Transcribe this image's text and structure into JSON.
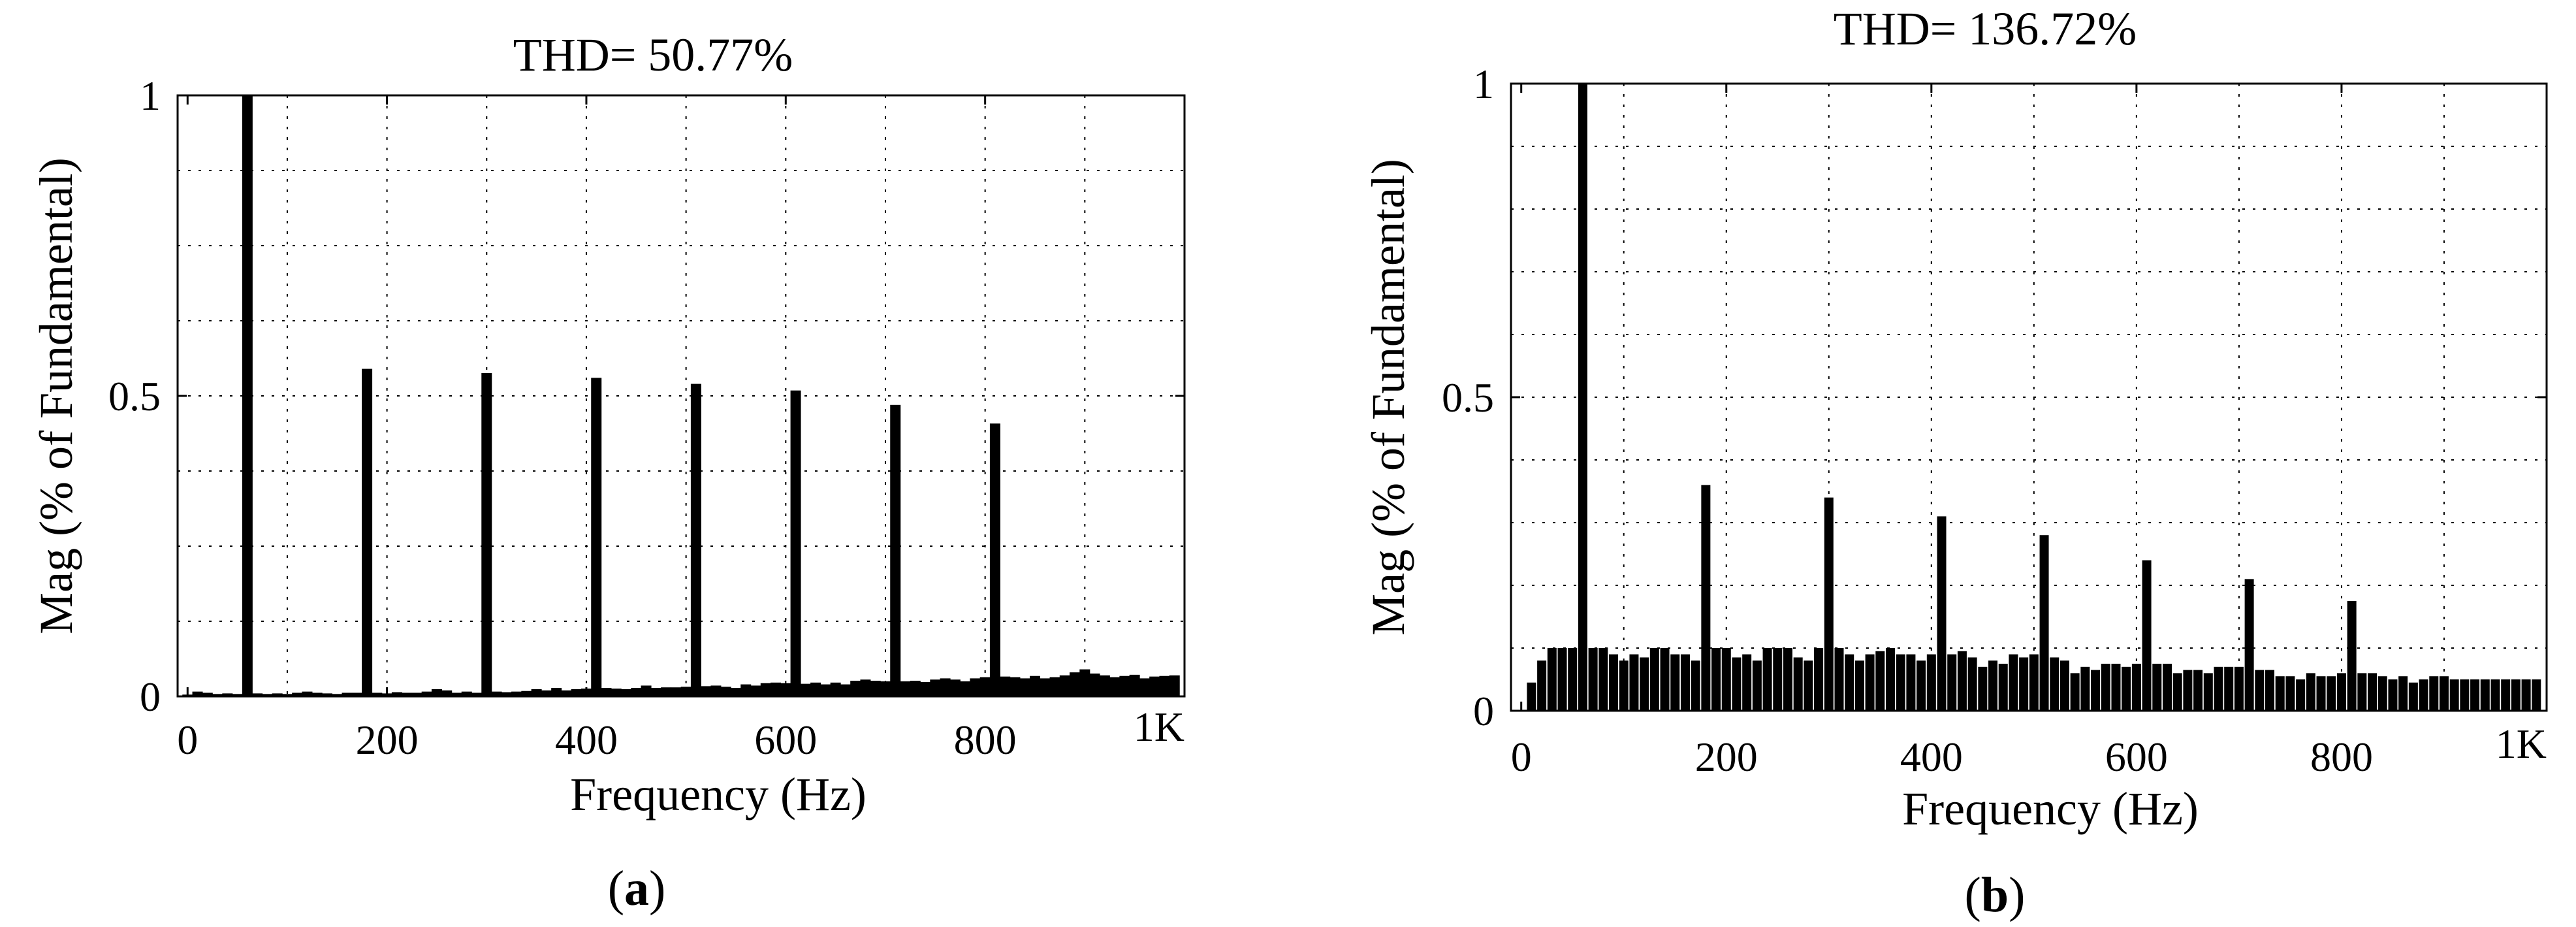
{
  "chart_data": [
    {
      "id": "a",
      "type": "bar",
      "title": "THD= 50.77%",
      "xlabel": "Frequency (Hz)",
      "ylabel": "Mag (% of Fundamental)",
      "caption": {
        "open": "(",
        "letter": "a",
        "close": ")"
      },
      "xlim": [
        -10,
        1000
      ],
      "ylim": [
        0,
        1
      ],
      "grid": true,
      "x_ticks": [
        {
          "value": 0,
          "label": "0"
        },
        {
          "value": 200,
          "label": "200"
        },
        {
          "value": 400,
          "label": "400"
        },
        {
          "value": 600,
          "label": "600"
        },
        {
          "value": 800,
          "label": "800"
        },
        {
          "value": 1000,
          "label": "1K"
        }
      ],
      "y_ticks": [
        {
          "value": 0,
          "label": "0"
        },
        {
          "value": 0.5,
          "label": "0.5"
        },
        {
          "value": 1,
          "label": "1"
        }
      ],
      "x_grid": [
        100,
        200,
        300,
        400,
        500,
        600,
        700,
        800,
        900
      ],
      "y_grid": [
        0.125,
        0.25,
        0.375,
        0.5,
        0.625,
        0.75,
        0.875
      ],
      "x": [
        0,
        10,
        20,
        30,
        40,
        50,
        60,
        70,
        80,
        90,
        100,
        110,
        120,
        130,
        140,
        150,
        160,
        170,
        180,
        190,
        200,
        210,
        220,
        230,
        240,
        250,
        260,
        270,
        280,
        290,
        300,
        310,
        320,
        330,
        340,
        350,
        360,
        370,
        380,
        390,
        400,
        410,
        420,
        430,
        440,
        450,
        460,
        470,
        480,
        490,
        500,
        510,
        520,
        530,
        540,
        550,
        560,
        570,
        580,
        590,
        600,
        610,
        620,
        630,
        640,
        650,
        660,
        670,
        680,
        690,
        700,
        710,
        720,
        730,
        740,
        750,
        760,
        770,
        780,
        790,
        800,
        810,
        820,
        830,
        840,
        850,
        860,
        870,
        880,
        890,
        900,
        910,
        920,
        930,
        940,
        950,
        960,
        970,
        980,
        990
      ],
      "values": [
        0.003,
        0.008,
        0.006,
        0.004,
        0.005,
        0.004,
        1.0,
        0.005,
        0.004,
        0.005,
        0.004,
        0.006,
        0.008,
        0.006,
        0.005,
        0.004,
        0.006,
        0.006,
        0.545,
        0.006,
        0.005,
        0.007,
        0.006,
        0.006,
        0.008,
        0.012,
        0.01,
        0.006,
        0.008,
        0.006,
        0.538,
        0.008,
        0.007,
        0.008,
        0.009,
        0.012,
        0.01,
        0.014,
        0.01,
        0.012,
        0.013,
        0.53,
        0.014,
        0.013,
        0.012,
        0.014,
        0.018,
        0.014,
        0.015,
        0.015,
        0.016,
        0.52,
        0.017,
        0.018,
        0.016,
        0.014,
        0.02,
        0.018,
        0.022,
        0.023,
        0.022,
        0.509,
        0.021,
        0.023,
        0.02,
        0.023,
        0.02,
        0.026,
        0.028,
        0.026,
        0.025,
        0.485,
        0.025,
        0.026,
        0.024,
        0.028,
        0.03,
        0.028,
        0.025,
        0.03,
        0.032,
        0.454,
        0.033,
        0.032,
        0.03,
        0.034,
        0.03,
        0.032,
        0.035,
        0.04,
        0.045,
        0.038,
        0.035,
        0.032,
        0.034,
        0.036,
        0.03,
        0.033,
        0.034,
        0.035
      ]
    },
    {
      "id": "b",
      "type": "bar",
      "title": "THD= 136.72%",
      "xlabel": "Frequency (Hz)",
      "ylabel": "Mag (% of Fundamental)",
      "caption": {
        "open": "(",
        "letter": "b",
        "close": ")"
      },
      "xlim": [
        -10,
        1000
      ],
      "ylim": [
        0,
        1
      ],
      "grid": true,
      "x_ticks": [
        {
          "value": 0,
          "label": "0"
        },
        {
          "value": 200,
          "label": "200"
        },
        {
          "value": 400,
          "label": "400"
        },
        {
          "value": 600,
          "label": "600"
        },
        {
          "value": 800,
          "label": "800"
        },
        {
          "value": 1000,
          "label": "1K"
        }
      ],
      "y_ticks": [
        {
          "value": 0,
          "label": "0"
        },
        {
          "value": 0.5,
          "label": "0.5"
        },
        {
          "value": 1,
          "label": "1"
        }
      ],
      "x_grid": [
        100,
        200,
        300,
        400,
        500,
        600,
        700,
        800,
        900
      ],
      "y_grid": [
        0.1,
        0.2,
        0.3,
        0.4,
        0.5,
        0.6,
        0.7,
        0.8,
        0.9
      ],
      "x": [
        0,
        10,
        20,
        30,
        40,
        50,
        60,
        70,
        80,
        90,
        100,
        110,
        120,
        130,
        140,
        150,
        160,
        170,
        180,
        190,
        200,
        210,
        220,
        230,
        240,
        250,
        260,
        270,
        280,
        290,
        300,
        310,
        320,
        330,
        340,
        350,
        360,
        370,
        380,
        390,
        400,
        410,
        420,
        430,
        440,
        450,
        460,
        470,
        480,
        490,
        500,
        510,
        520,
        530,
        540,
        550,
        560,
        570,
        580,
        590,
        600,
        610,
        620,
        630,
        640,
        650,
        660,
        670,
        680,
        690,
        700,
        710,
        720,
        730,
        740,
        750,
        760,
        770,
        780,
        790,
        800,
        810,
        820,
        830,
        840,
        850,
        860,
        870,
        880,
        890,
        900,
        910,
        920,
        930,
        940,
        950,
        960,
        970,
        980,
        990
      ],
      "values": [
        0.0,
        0.045,
        0.08,
        0.1,
        0.1,
        0.1,
        1.0,
        0.1,
        0.1,
        0.09,
        0.08,
        0.09,
        0.085,
        0.1,
        0.1,
        0.09,
        0.09,
        0.08,
        0.36,
        0.1,
        0.1,
        0.085,
        0.09,
        0.08,
        0.1,
        0.1,
        0.1,
        0.085,
        0.08,
        0.1,
        0.34,
        0.1,
        0.09,
        0.08,
        0.09,
        0.095,
        0.1,
        0.09,
        0.09,
        0.08,
        0.09,
        0.31,
        0.09,
        0.095,
        0.085,
        0.07,
        0.08,
        0.075,
        0.09,
        0.085,
        0.09,
        0.28,
        0.085,
        0.08,
        0.06,
        0.07,
        0.065,
        0.075,
        0.075,
        0.07,
        0.075,
        0.24,
        0.075,
        0.075,
        0.06,
        0.065,
        0.065,
        0.06,
        0.07,
        0.07,
        0.07,
        0.21,
        0.065,
        0.065,
        0.055,
        0.055,
        0.05,
        0.06,
        0.055,
        0.055,
        0.06,
        0.175,
        0.06,
        0.06,
        0.055,
        0.05,
        0.055,
        0.045,
        0.05,
        0.055,
        0.055,
        0.05,
        0.05,
        0.05,
        0.05,
        0.05,
        0.05,
        0.05,
        0.05,
        0.05
      ]
    }
  ]
}
